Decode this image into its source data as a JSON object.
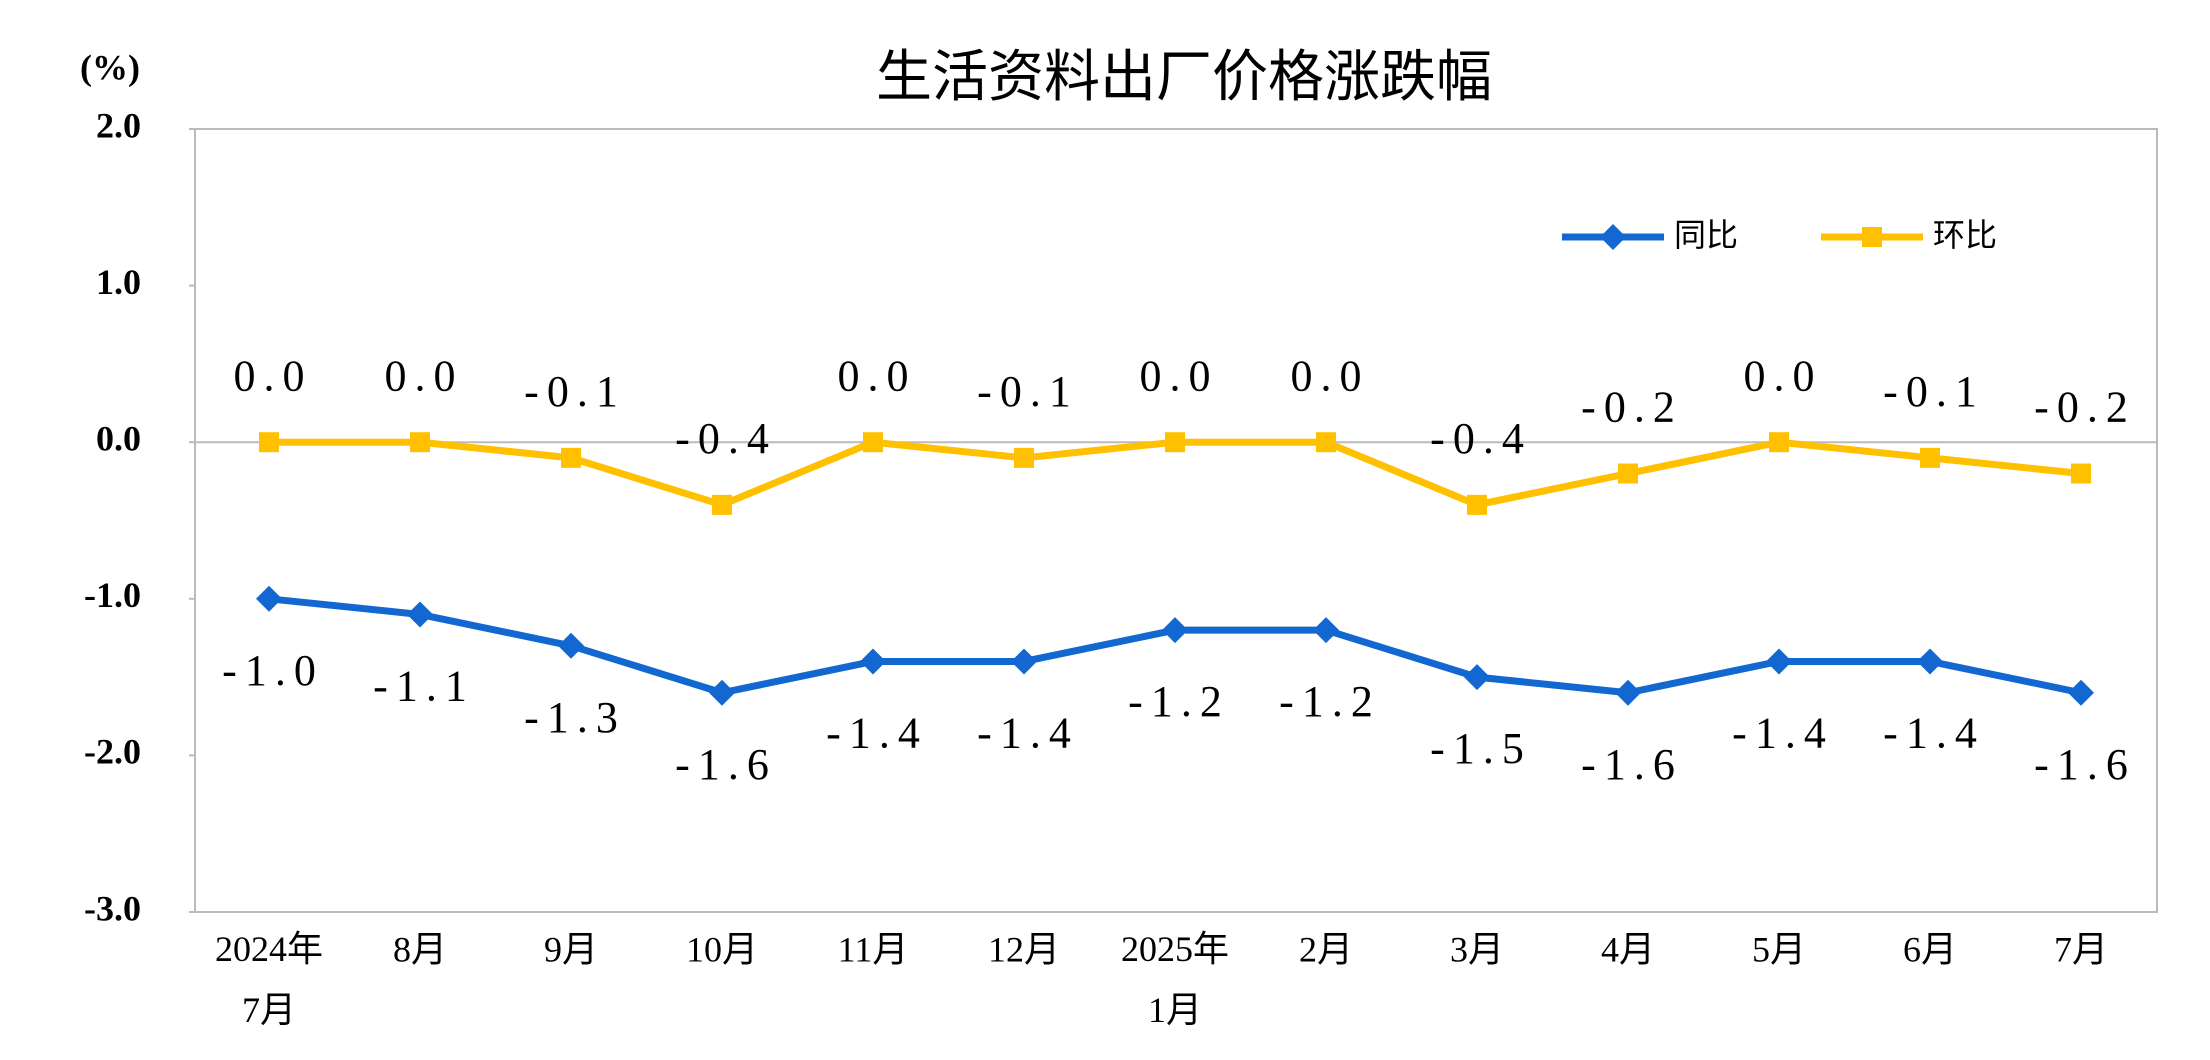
{
  "chart_data": {
    "type": "line",
    "title": "生活资料出厂价格涨跌幅",
    "y_unit": "(%)",
    "categories": [
      "2024年\n7月",
      "8月",
      "9月",
      "10月",
      "11月",
      "12月",
      "2025年\n1月",
      "2月",
      "3月",
      "4月",
      "5月",
      "6月",
      "7月"
    ],
    "series": [
      {
        "name": "同比",
        "color": "#1268d0",
        "marker": "diamond",
        "label_side": "below",
        "values": [
          -1.0,
          -1.1,
          -1.3,
          -1.6,
          -1.4,
          -1.4,
          -1.2,
          -1.2,
          -1.5,
          -1.6,
          -1.4,
          -1.4,
          -1.6
        ],
        "value_labels": [
          "-1.0",
          "-1.1",
          "-1.3",
          "-1.6",
          "-1.4",
          "-1.4",
          "-1.2",
          "-1.2",
          "-1.5",
          "-1.6",
          "-1.4",
          "-1.4",
          "-1.6"
        ]
      },
      {
        "name": "环比",
        "color": "#ffc000",
        "marker": "square",
        "label_side": "above",
        "values": [
          0.0,
          0.0,
          -0.1,
          -0.4,
          0.0,
          -0.1,
          0.0,
          0.0,
          -0.4,
          -0.2,
          0.0,
          -0.1,
          -0.2
        ],
        "value_labels": [
          "0.0",
          "0.0",
          "-0.1",
          "-0.4",
          "0.0",
          "-0.1",
          "0.0",
          "0.0",
          "-0.4",
          "-0.2",
          "0.0",
          "-0.1",
          "-0.2"
        ]
      }
    ],
    "ylim": [
      -3,
      2
    ],
    "yticks": [
      {
        "value": -3,
        "label": "-3.0"
      },
      {
        "value": -2,
        "label": "-2.0"
      },
      {
        "value": -1,
        "label": "-1.0"
      },
      {
        "value": 0,
        "label": "0.0"
      },
      {
        "value": 1,
        "label": "1.0"
      },
      {
        "value": 2,
        "label": "2.0"
      }
    ],
    "grid": false,
    "legend": "upper right"
  }
}
